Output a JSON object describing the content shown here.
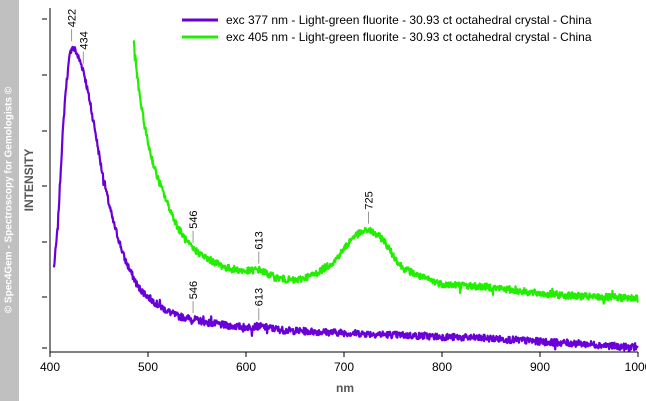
{
  "watermark": "© Spec4Gem - Spectroscopy for Gemologists ©",
  "colors": {
    "series1": "#6a00d8",
    "series2": "#22ee00"
  },
  "chart_data": {
    "type": "line",
    "xlabel": "nm",
    "ylabel": "INTENSITY",
    "xlim": [
      400,
      1000
    ],
    "x_ticks": [
      400,
      500,
      600,
      700,
      800,
      900,
      1000
    ],
    "x_tick_labels": [
      "400",
      "500",
      "600",
      "700",
      "800",
      "900",
      "1000"
    ],
    "ylim": [
      0,
      1
    ],
    "legend_position": "top-right",
    "grid": false,
    "series": [
      {
        "name": "exc 377 nm - Light-green fluorite - 30.93 ct octahedral crystal - China",
        "color": "#6a00d8",
        "x": [
          404,
          408,
          412,
          416,
          420,
          422,
          426,
          430,
          434,
          440,
          446,
          452,
          458,
          464,
          470,
          476,
          482,
          490,
          500,
          510,
          520,
          530,
          546,
          560,
          580,
          600,
          613,
          640,
          680,
          720,
          760,
          800,
          850,
          900,
          950,
          1000
        ],
        "y": [
          0.25,
          0.38,
          0.62,
          0.81,
          0.91,
          0.94,
          0.93,
          0.9,
          0.87,
          0.78,
          0.68,
          0.57,
          0.48,
          0.4,
          0.34,
          0.28,
          0.24,
          0.19,
          0.16,
          0.135,
          0.115,
          0.1,
          0.09,
          0.08,
          0.07,
          0.065,
          0.068,
          0.055,
          0.05,
          0.045,
          0.04,
          0.035,
          0.03,
          0.02,
          0.012,
          0.0
        ]
      },
      {
        "name": "exc 405 nm - Light-green fluorite - 30.93 ct octahedral crystal - China",
        "color": "#22ee00",
        "x": [
          485,
          490,
          495,
          500,
          505,
          510,
          520,
          530,
          540,
          546,
          560,
          580,
          600,
          613,
          630,
          650,
          670,
          690,
          700,
          710,
          725,
          740,
          750,
          760,
          780,
          800,
          850,
          900,
          950,
          1000
        ],
        "y": [
          0.97,
          0.82,
          0.72,
          0.64,
          0.58,
          0.53,
          0.45,
          0.38,
          0.33,
          0.31,
          0.28,
          0.25,
          0.24,
          0.245,
          0.22,
          0.21,
          0.23,
          0.27,
          0.31,
          0.35,
          0.37,
          0.34,
          0.29,
          0.25,
          0.22,
          0.2,
          0.19,
          0.17,
          0.16,
          0.155
        ]
      }
    ],
    "annotations": [
      {
        "text": "422",
        "x": 422,
        "series": 0
      },
      {
        "text": "434",
        "x": 434,
        "series": 0
      },
      {
        "text": "546",
        "x": 546,
        "series": 0
      },
      {
        "text": "613",
        "x": 613,
        "series": 0
      },
      {
        "text": "546",
        "x": 546,
        "series": 1
      },
      {
        "text": "613",
        "x": 613,
        "series": 1
      },
      {
        "text": "725",
        "x": 725,
        "series": 1
      }
    ]
  }
}
